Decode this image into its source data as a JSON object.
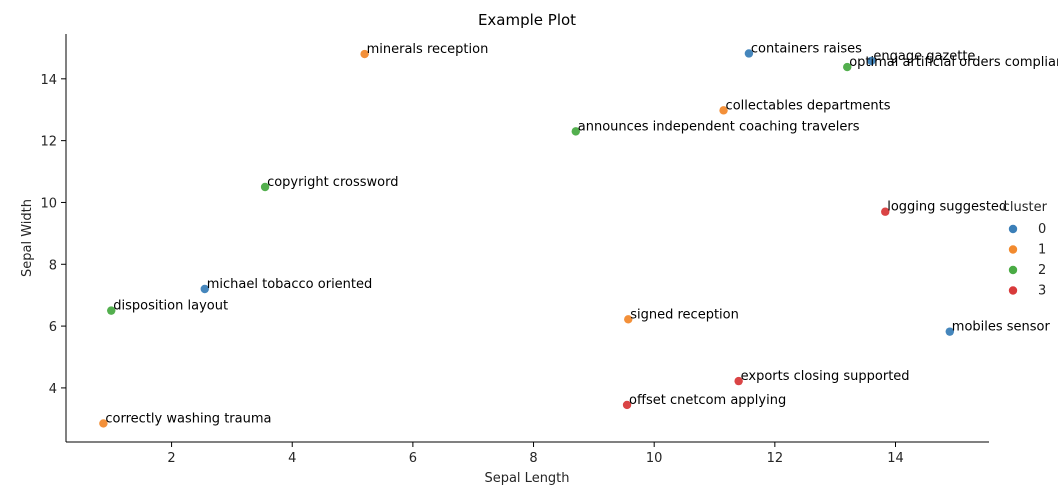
{
  "chart_data": {
    "type": "scatter",
    "title": "Example Plot",
    "xlabel": "Sepal Length",
    "ylabel": "Sepal Width",
    "xlim": [
      0.25,
      15.55
    ],
    "ylim": [
      2.25,
      15.45
    ],
    "xticks": [
      2,
      4,
      6,
      8,
      10,
      12,
      14
    ],
    "yticks": [
      4,
      6,
      8,
      10,
      12,
      14
    ],
    "grid": false,
    "legend": {
      "title": "cluster",
      "placement": "right",
      "entries": [
        {
          "label": "0",
          "color": "#3b7fb8"
        },
        {
          "label": "1",
          "color": "#f28a2e"
        },
        {
          "label": "2",
          "color": "#4aab44"
        },
        {
          "label": "3",
          "color": "#d83a3b"
        }
      ]
    },
    "points": [
      {
        "x": 5.2,
        "y": 14.8,
        "cluster": "1",
        "label": "minerals reception"
      },
      {
        "x": 11.57,
        "y": 14.82,
        "cluster": "0",
        "label": "containers raises"
      },
      {
        "x": 13.6,
        "y": 14.58,
        "cluster": "0",
        "label": "engage gazette"
      },
      {
        "x": 13.2,
        "y": 14.38,
        "cluster": "2",
        "label": "optimal artificial orders compliance"
      },
      {
        "x": 11.15,
        "y": 12.98,
        "cluster": "1",
        "label": "collectables departments"
      },
      {
        "x": 8.7,
        "y": 12.3,
        "cluster": "2",
        "label": "announces independent coaching travelers"
      },
      {
        "x": 3.55,
        "y": 10.5,
        "cluster": "2",
        "label": "copyright crossword"
      },
      {
        "x": 13.83,
        "y": 9.7,
        "cluster": "3",
        "label": "logging suggested"
      },
      {
        "x": 2.55,
        "y": 7.2,
        "cluster": "0",
        "label": "michael tobacco oriented"
      },
      {
        "x": 1.0,
        "y": 6.5,
        "cluster": "2",
        "label": "disposition layout"
      },
      {
        "x": 9.57,
        "y": 6.22,
        "cluster": "1",
        "label": "signed reception"
      },
      {
        "x": 14.9,
        "y": 5.82,
        "cluster": "0",
        "label": "mobiles sensor"
      },
      {
        "x": 11.4,
        "y": 4.22,
        "cluster": "3",
        "label": "exports closing supported"
      },
      {
        "x": 9.55,
        "y": 3.45,
        "cluster": "3",
        "label": "offset cnetcom applying"
      },
      {
        "x": 0.87,
        "y": 2.85,
        "cluster": "1",
        "label": "correctly washing trauma"
      }
    ]
  }
}
